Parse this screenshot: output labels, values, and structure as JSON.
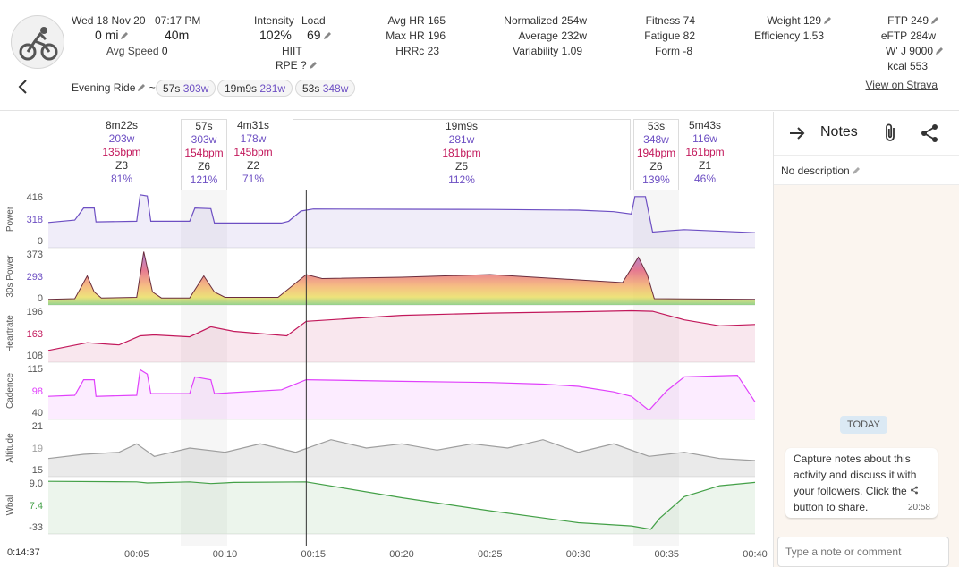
{
  "header": {
    "date": "Wed 18 Nov 20",
    "time": "07:17 PM",
    "distance": "0 mi",
    "duration": "40m",
    "avg_speed_label": "Avg Speed",
    "avg_speed_value": "0",
    "intensity_label": "Intensity",
    "intensity_value": "102%",
    "load_label": "Load",
    "load_value": "69",
    "type": "HIIT",
    "rpe": "RPE ?",
    "avg_hr_label": "Avg HR",
    "avg_hr_value": "165",
    "max_hr_label": "Max HR",
    "max_hr_value": "196",
    "hrrc_label": "HRRc",
    "hrrc_value": "23",
    "normalized_label": "Normalized",
    "normalized_value": "254w",
    "average_label": "Average",
    "average_value": "232w",
    "variability_label": "Variability",
    "variability_value": "1.09",
    "fitness_label": "Fitness",
    "fitness_value": "74",
    "fatigue_label": "Fatigue",
    "fatigue_value": "82",
    "form_label": "Form",
    "form_value": "-8",
    "weight_label": "Weight",
    "weight_value": "129",
    "efficiency_label": "Efficiency",
    "efficiency_value": "1.53",
    "ftp_label": "FTP",
    "ftp_value": "249",
    "eftp_label": "eFTP",
    "eftp_value": "284w",
    "wj_label": "W' J",
    "wj_value": "9000",
    "kcal_label": "kcal",
    "kcal_value": "553",
    "activity_name": "Evening Ride",
    "tilde": "~",
    "chips": [
      {
        "dur": "57s",
        "power": "303w"
      },
      {
        "dur": "19m9s",
        "power": "281w"
      },
      {
        "dur": "53s",
        "power": "348w"
      }
    ],
    "strava_link": "View on Strava"
  },
  "intervals": [
    {
      "dur": "8m22s",
      "power": "203w",
      "hr": "135bpm",
      "zone": "Z3",
      "pct": "81%"
    },
    {
      "dur": "57s",
      "power": "303w",
      "hr": "154bpm",
      "zone": "Z6",
      "pct": "121%"
    },
    {
      "dur": "4m31s",
      "power": "178w",
      "hr": "145bpm",
      "zone": "Z2",
      "pct": "71%"
    },
    {
      "dur": "19m9s",
      "power": "281w",
      "hr": "181bpm",
      "zone": "Z5",
      "pct": "112%"
    },
    {
      "dur": "53s",
      "power": "348w",
      "hr": "194bpm",
      "zone": "Z6",
      "pct": "139%"
    },
    {
      "dur": "5m43s",
      "power": "116w",
      "hr": "161bpm",
      "zone": "Z1",
      "pct": "46%"
    }
  ],
  "cursor_time": "0:14:37",
  "colors": {
    "power": "#6d4fc3",
    "heartrate": "#c2185b",
    "cadence": "#e040fb",
    "altitude": "#9e9e9e",
    "wbal": "#43a047"
  },
  "chart_data": {
    "type": "line",
    "x_unit": "minutes",
    "xlim": [
      0,
      40
    ],
    "x_ticks": [
      "00:05",
      "00:10",
      "00:15",
      "00:20",
      "00:25",
      "00:30",
      "00:35",
      "00:40"
    ],
    "cursor_x": 14.6,
    "panels": [
      {
        "name": "Power",
        "ticks": [
          "416",
          "318",
          "0"
        ],
        "ylim": [
          0,
          416
        ],
        "color": "#6d4fc3",
        "points": [
          [
            0,
            180
          ],
          [
            1.5,
            200
          ],
          [
            2,
            300
          ],
          [
            2.6,
            300
          ],
          [
            2.7,
            185
          ],
          [
            5,
            190
          ],
          [
            5.2,
            410
          ],
          [
            5.6,
            400
          ],
          [
            5.8,
            190
          ],
          [
            8,
            190
          ],
          [
            8.3,
            300
          ],
          [
            9.2,
            295
          ],
          [
            9.4,
            175
          ],
          [
            13.2,
            175
          ],
          [
            13.6,
            190
          ],
          [
            14.3,
            275
          ],
          [
            15,
            292
          ],
          [
            20,
            290
          ],
          [
            25,
            288
          ],
          [
            30,
            282
          ],
          [
            32,
            270
          ],
          [
            33,
            250
          ],
          [
            33.2,
            395
          ],
          [
            33.8,
            395
          ],
          [
            34.2,
            100
          ],
          [
            35,
            110
          ],
          [
            36,
            120
          ],
          [
            40,
            95
          ]
        ]
      },
      {
        "name": "30s Power",
        "ticks": [
          "373",
          "293",
          "0"
        ],
        "ylim": [
          0,
          373
        ],
        "color": "#6d4fc3",
        "points": [
          [
            0,
            15
          ],
          [
            1.5,
            20
          ],
          [
            2.2,
            190
          ],
          [
            2.6,
            70
          ],
          [
            3,
            25
          ],
          [
            5,
            30
          ],
          [
            5.4,
            370
          ],
          [
            5.9,
            70
          ],
          [
            6.4,
            25
          ],
          [
            8,
            25
          ],
          [
            8.8,
            190
          ],
          [
            9.4,
            70
          ],
          [
            10,
            30
          ],
          [
            13,
            30
          ],
          [
            14.6,
            200
          ],
          [
            15.5,
            170
          ],
          [
            20,
            180
          ],
          [
            25,
            200
          ],
          [
            30,
            160
          ],
          [
            32.5,
            140
          ],
          [
            33.4,
            330
          ],
          [
            33.9,
            200
          ],
          [
            34.3,
            20
          ],
          [
            40,
            15
          ]
        ]
      },
      {
        "name": "Heartrate",
        "ticks": [
          "196",
          "163",
          "108"
        ],
        "ylim": [
          90,
          200
        ],
        "color": "#c2185b",
        "points": [
          [
            0,
            108
          ],
          [
            2.2,
            125
          ],
          [
            4,
            120
          ],
          [
            5.2,
            140
          ],
          [
            6,
            142
          ],
          [
            8,
            138
          ],
          [
            9.2,
            160
          ],
          [
            10.5,
            150
          ],
          [
            13.5,
            140
          ],
          [
            14.6,
            172
          ],
          [
            20,
            185
          ],
          [
            25,
            190
          ],
          [
            30,
            193
          ],
          [
            33,
            195
          ],
          [
            34.2,
            194
          ],
          [
            36,
            175
          ],
          [
            38,
            162
          ],
          [
            40,
            165
          ]
        ]
      },
      {
        "name": "Cadence",
        "ticks": [
          "115",
          "98",
          "40"
        ],
        "ylim": [
          35,
          125
        ],
        "color": "#e040fb",
        "points": [
          [
            0,
            70
          ],
          [
            1.5,
            72
          ],
          [
            2,
            100
          ],
          [
            2.6,
            100
          ],
          [
            2.7,
            70
          ],
          [
            5,
            72
          ],
          [
            5.2,
            118
          ],
          [
            5.6,
            110
          ],
          [
            5.8,
            75
          ],
          [
            8,
            75
          ],
          [
            8.3,
            105
          ],
          [
            9.2,
            100
          ],
          [
            9.4,
            75
          ],
          [
            13.2,
            82
          ],
          [
            14.6,
            100
          ],
          [
            20,
            97
          ],
          [
            25,
            95
          ],
          [
            28,
            92
          ],
          [
            30,
            88
          ],
          [
            32,
            78
          ],
          [
            33,
            70
          ],
          [
            34,
            45
          ],
          [
            35,
            80
          ],
          [
            36,
            105
          ],
          [
            39,
            108
          ],
          [
            40,
            60
          ]
        ]
      },
      {
        "name": "Altitude",
        "ticks": [
          "21",
          "19",
          "15"
        ],
        "ylim": [
          12,
          24
        ],
        "color": "#9e9e9e",
        "points": [
          [
            0,
            15.5
          ],
          [
            2,
            16.5
          ],
          [
            4,
            17
          ],
          [
            5,
            19
          ],
          [
            6,
            16
          ],
          [
            8,
            18
          ],
          [
            10,
            17
          ],
          [
            12,
            19
          ],
          [
            14,
            17
          ],
          [
            16,
            20
          ],
          [
            18,
            18
          ],
          [
            20,
            19
          ],
          [
            22,
            17.5
          ],
          [
            24,
            19
          ],
          [
            26,
            18
          ],
          [
            28,
            20
          ],
          [
            30,
            17
          ],
          [
            32,
            19
          ],
          [
            34,
            16
          ],
          [
            36,
            17
          ],
          [
            38,
            15.5
          ],
          [
            40,
            15
          ]
        ]
      },
      {
        "name": "Wbal",
        "ticks": [
          "9.0",
          "7.4",
          "-33"
        ],
        "ylim": [
          -36,
          10
        ],
        "color": "#43a047",
        "points": [
          [
            0,
            9
          ],
          [
            5,
            8.5
          ],
          [
            5.6,
            7.5
          ],
          [
            8,
            8.5
          ],
          [
            9.2,
            7
          ],
          [
            10.5,
            8
          ],
          [
            14.6,
            8.5
          ],
          [
            20,
            -6
          ],
          [
            25,
            -18
          ],
          [
            30,
            -29
          ],
          [
            33,
            -32
          ],
          [
            34.1,
            -35
          ],
          [
            34.6,
            -25
          ],
          [
            36,
            -5
          ],
          [
            38,
            5
          ],
          [
            40,
            8
          ]
        ]
      }
    ]
  },
  "notes": {
    "title": "Notes",
    "description": "No description",
    "today": "TODAY",
    "message_line1": "Capture notes about this",
    "message_line2": "activity and discuss it with",
    "message_line3": "your followers. Click the",
    "message_line4": "button to share.",
    "message_time": "20:58",
    "input_placeholder": "Type a note or comment"
  }
}
